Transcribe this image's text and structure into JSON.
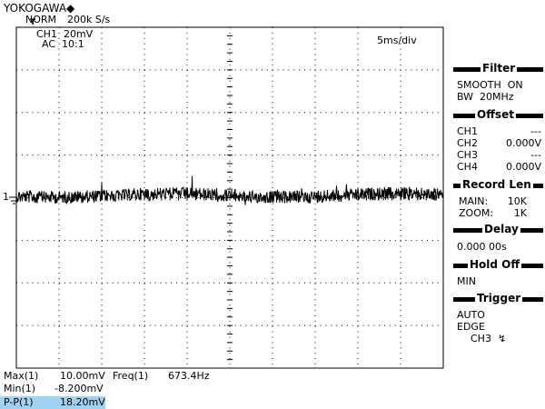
{
  "header": {
    "brand": "YOKOGAWA◆",
    "mode": "NORM",
    "sample_rate": "200k S/s"
  },
  "screen": {
    "channel": "CH1  20mV",
    "coupling": "AC  10:1",
    "timebase": "5ms/div",
    "trigger_marker": "T",
    "channel_marker": "1"
  },
  "panel": {
    "filter": {
      "title": "Filter",
      "lines": [
        "SMOOTH  ON",
        "BW  20MHz"
      ]
    },
    "offset": {
      "title": "Offset",
      "rows": [
        [
          "CH1",
          "---"
        ],
        [
          "CH2",
          "0.000V"
        ],
        [
          "CH3",
          "---"
        ],
        [
          "CH4",
          "0.000V"
        ]
      ]
    },
    "record_len": {
      "title": "Record Len",
      "rows": [
        [
          "MAIN:",
          "10K"
        ],
        [
          "ZOOM:",
          "1K"
        ]
      ]
    },
    "delay": {
      "title": "Delay",
      "value": "0.000 00s"
    },
    "hold_off": {
      "title": "Hold Off",
      "value": "MIN"
    },
    "trigger": {
      "title": "Trigger",
      "lines": [
        "AUTO",
        "EDGE",
        "CH3  ↯"
      ]
    }
  },
  "measurements": [
    [
      "Max(1)",
      "10.00mV"
    ],
    [
      "Freq(1)",
      "673.4Hz"
    ],
    [
      "Min(1)",
      "-8.200mV"
    ],
    [
      "P-P(1)",
      "18.20mV"
    ]
  ]
}
